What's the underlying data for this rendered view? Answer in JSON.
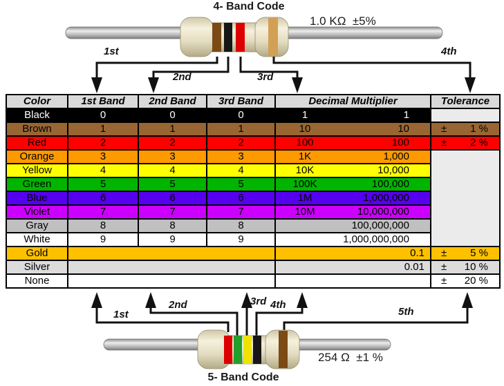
{
  "top_resistor": {
    "title": "4- Band Code",
    "value_label": "1.0 KΩ  ±5%",
    "band_names": [
      "brown",
      "black",
      "red",
      "gold"
    ],
    "band_hex": [
      "#7B4A15",
      "#161616",
      "#DD0000",
      "#D1A054"
    ],
    "arrow_labels": [
      "1st",
      "2nd",
      "3rd",
      "4th"
    ]
  },
  "bottom_resistor": {
    "title": "5- Band Code",
    "value_label": "254 Ω  ±1 %",
    "band_names": [
      "red",
      "green",
      "yellow",
      "black",
      "brown"
    ],
    "band_hex": [
      "#DD0000",
      "#21A02A",
      "#EFE400",
      "#161616",
      "#7B4A15"
    ],
    "arrow_labels": [
      "1st",
      "2nd",
      "3rd",
      "4th",
      "5th"
    ]
  },
  "table": {
    "plus_minus": "±",
    "header_bg": "#D9D9D9",
    "empty_tolerance_bg": "#EBEBEB",
    "headers": [
      "Color",
      "1st Band",
      "2nd Band",
      "3rd Band",
      "Decimal Multiplier",
      "Tolerance"
    ],
    "rows": [
      {
        "name": "Black",
        "bg": "#000000",
        "fg": "#FFFFFF",
        "bands": [
          "0",
          "0",
          "0"
        ],
        "mult_short": "1",
        "mult_long": "1",
        "tol": "",
        "tol_bg": "#EBEBEB"
      },
      {
        "name": "Brown",
        "bg": "#996633",
        "bands": [
          "1",
          "1",
          "1"
        ],
        "mult_short": "10",
        "mult_long": "10",
        "tol": "1 %"
      },
      {
        "name": "Red",
        "bg": "#FF0000",
        "bands": [
          "2",
          "2",
          "2"
        ],
        "mult_short": "100",
        "mult_long": "100",
        "tol": "2 %"
      },
      {
        "name": "Orange",
        "bg": "#FF9900",
        "bands": [
          "3",
          "3",
          "3"
        ],
        "mult_short": "1K",
        "mult_long": "1,000",
        "tol_merge_span": 7
      },
      {
        "name": "Yellow",
        "bg": "#FFFF00",
        "bands": [
          "4",
          "4",
          "4"
        ],
        "mult_short": "10K",
        "mult_long": "10,000"
      },
      {
        "name": "Green",
        "bg": "#00B400",
        "bands": [
          "5",
          "5",
          "5"
        ],
        "mult_short": "100K",
        "mult_long": "100,000"
      },
      {
        "name": "Blue",
        "bg": "#5500EE",
        "bands": [
          "6",
          "6",
          "6"
        ],
        "mult_short": "1M",
        "mult_long": "1,000,000"
      },
      {
        "name": "Violet",
        "bg": "#CC00FF",
        "bands": [
          "7",
          "7",
          "7"
        ],
        "mult_short": "10M",
        "mult_long": "10,000,000"
      },
      {
        "name": "Gray",
        "bg": "#C0C0C0",
        "bands": [
          "8",
          "8",
          "8"
        ],
        "mult_short": "",
        "mult_long": "100,000,000"
      },
      {
        "name": "White",
        "bg": "#FFFFFF",
        "bands": [
          "9",
          "9",
          "9"
        ],
        "mult_short": "",
        "mult_long": "1,000,000,000"
      },
      {
        "name": "Gold",
        "bg": "#FFC000",
        "merged_bands": true,
        "mult_short": "",
        "mult_long": "0.1",
        "tol": "5 %"
      },
      {
        "name": "Silver",
        "bg": "#DCDCDC",
        "merged_bands": true,
        "mult_short": "",
        "mult_long": "0.01",
        "tol": "10 %"
      },
      {
        "name": "None",
        "bg": "#FFFFFF",
        "merged_bands": true,
        "mult_short": "",
        "mult_long": "",
        "tol": "20 %"
      }
    ]
  }
}
